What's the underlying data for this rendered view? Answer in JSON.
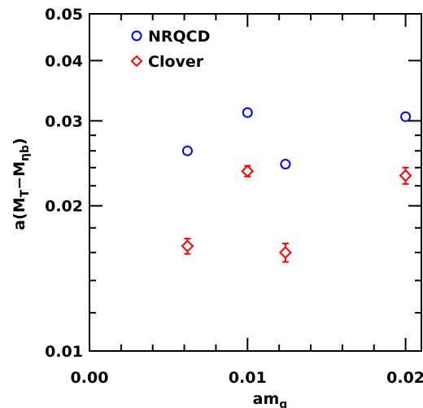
{
  "chart_data": {
    "type": "scatter",
    "xlabel": "am",
    "xlabel_sub": "q",
    "ylabel_parts": {
      "a": "a(M",
      "sub1": "T",
      "mid": "−M",
      "sub2": "ηb",
      "end": ")"
    },
    "xlim": [
      0.0,
      0.021
    ],
    "ylim": [
      0.01,
      0.05
    ],
    "y_scale": "log",
    "x_ticks": [
      {
        "value": 0.0,
        "label": "0.00"
      },
      {
        "value": 0.01,
        "label": "0.01"
      },
      {
        "value": 0.02,
        "label": "0.02"
      }
    ],
    "x_minor_step": 0.002,
    "y_ticks": [
      {
        "value": 0.01,
        "label": "0.01"
      },
      {
        "value": 0.02,
        "label": "0.02"
      },
      {
        "value": 0.03,
        "label": "0.03"
      },
      {
        "value": 0.04,
        "label": "0.04"
      },
      {
        "value": 0.05,
        "label": "0.05"
      }
    ],
    "y_minor": [
      0.012,
      0.014,
      0.016,
      0.018,
      0.022,
      0.024,
      0.026,
      0.028
    ],
    "legend_position": "top-left",
    "series": [
      {
        "name": "NRQCD",
        "marker": "circle",
        "color": "#0000ff",
        "points": [
          {
            "x": 0.0062,
            "y": 0.026,
            "err": 0.0004
          },
          {
            "x": 0.01,
            "y": 0.0312,
            "err": 0.0005
          },
          {
            "x": 0.0124,
            "y": 0.0244,
            "err": 0.0004
          },
          {
            "x": 0.02,
            "y": 0.0306,
            "err": 0.0005
          }
        ]
      },
      {
        "name": "Clover",
        "marker": "diamond",
        "color": "#ff0000",
        "points": [
          {
            "x": 0.0062,
            "y": 0.0165,
            "err": 0.0006
          },
          {
            "x": 0.01,
            "y": 0.0236,
            "err": 0.0006
          },
          {
            "x": 0.0124,
            "y": 0.016,
            "err": 0.0007
          },
          {
            "x": 0.02,
            "y": 0.0231,
            "err": 0.0009
          }
        ]
      }
    ]
  }
}
